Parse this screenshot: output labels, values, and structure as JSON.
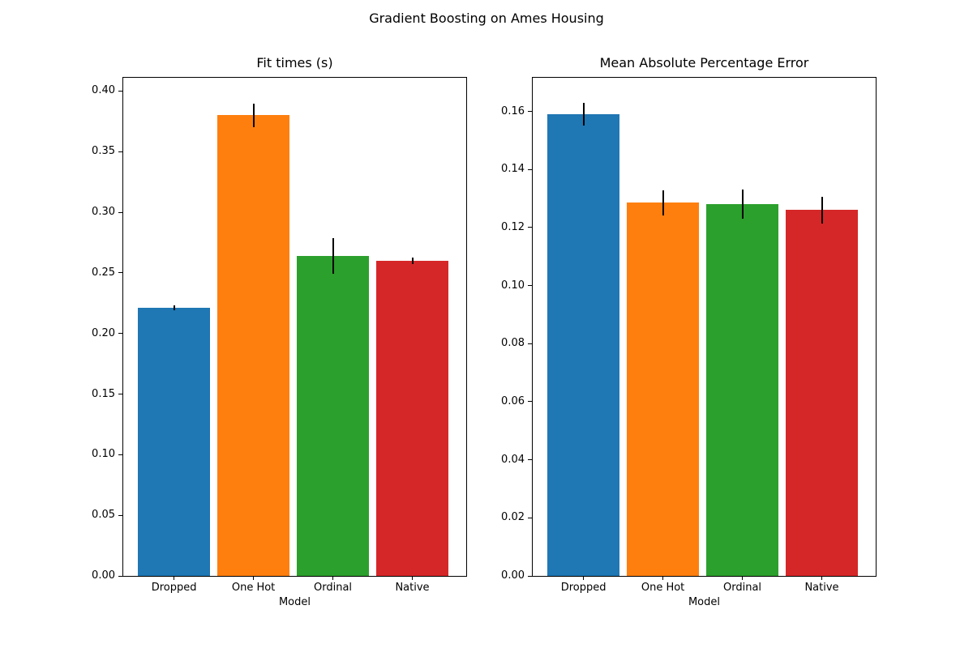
{
  "figure": {
    "suptitle": "Gradient Boosting on Ames Housing",
    "background": "#ffffff"
  },
  "chart_data": [
    {
      "type": "bar",
      "title": "Fit times (s)",
      "xlabel": "Model",
      "categories": [
        "Dropped",
        "One Hot",
        "Ordinal",
        "Native"
      ],
      "values": [
        0.221,
        0.38,
        0.264,
        0.26
      ],
      "error_bars": [
        0.002,
        0.0095,
        0.0145,
        0.0025
      ],
      "bar_colors": [
        "#1f77b4",
        "#ff7f0e",
        "#2ca02c",
        "#d62728"
      ],
      "ylim": [
        0,
        0.411
      ],
      "yticks": [
        0.0,
        0.05,
        0.1,
        0.15,
        0.2,
        0.25,
        0.3,
        0.35,
        0.4
      ],
      "ytick_decimals": 2,
      "grid": false,
      "legend": null
    },
    {
      "type": "bar",
      "title": "Mean Absolute Percentage Error",
      "xlabel": "Model",
      "categories": [
        "Dropped",
        "One Hot",
        "Ordinal",
        "Native"
      ],
      "values": [
        0.159,
        0.1285,
        0.128,
        0.126
      ],
      "error_bars": [
        0.004,
        0.0043,
        0.005,
        0.0047
      ],
      "bar_colors": [
        "#1f77b4",
        "#ff7f0e",
        "#2ca02c",
        "#d62728"
      ],
      "ylim": [
        0,
        0.1716
      ],
      "yticks": [
        0.0,
        0.02,
        0.04,
        0.06,
        0.08,
        0.1,
        0.12,
        0.14,
        0.16
      ],
      "ytick_decimals": 2,
      "grid": false,
      "legend": null
    }
  ]
}
